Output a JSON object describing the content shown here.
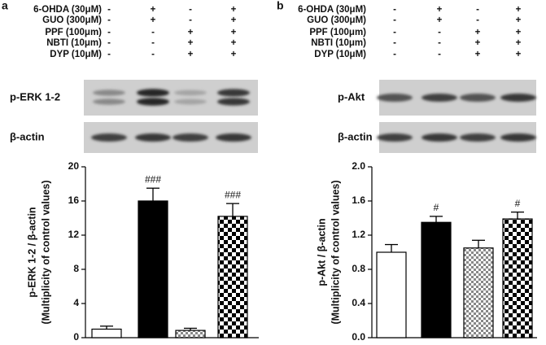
{
  "panels": [
    {
      "label": "a",
      "treatments": [
        {
          "name": "6-OHDA (30μM)",
          "signs": [
            "-",
            "+",
            "-",
            "+"
          ]
        },
        {
          "name": "GUO (300μM)",
          "signs": [
            "-",
            "+",
            "-",
            "+"
          ]
        },
        {
          "name": "PPF (100μm)",
          "signs": [
            "-",
            "-",
            "+",
            "+"
          ]
        },
        {
          "name": "NBTI (10μm)",
          "signs": [
            "-",
            "-",
            "+",
            "+"
          ]
        },
        {
          "name": "DYP (10μM)",
          "signs": [
            "-",
            "-",
            "+",
            "+"
          ]
        }
      ],
      "blots": [
        "p-ERK 1-2",
        "β-actin"
      ]
    },
    {
      "label": "b",
      "treatments": [
        {
          "name": "6-OHDA (30μM)",
          "signs": [
            "-",
            "+",
            "-",
            "+"
          ]
        },
        {
          "name": "GUO (300μM)",
          "signs": [
            "-",
            "+",
            "-",
            "+"
          ]
        },
        {
          "name": "PPF (100μm)",
          "signs": [
            "-",
            "-",
            "+",
            "+"
          ]
        },
        {
          "name": "NBTI (10μm)",
          "signs": [
            "-",
            "-",
            "+",
            "+"
          ]
        },
        {
          "name": "DYP (10μM)",
          "signs": [
            "-",
            "-",
            "+",
            "+"
          ]
        }
      ],
      "blots": [
        "p-Akt",
        "β-actin"
      ]
    }
  ],
  "chart_data": [
    {
      "type": "bar",
      "ylabel": [
        "p-ERK 1-2 / β-actin",
        "(Multiplicity of control values)"
      ],
      "values": [
        1.0,
        16.0,
        0.85,
        14.2
      ],
      "errors": [
        0.35,
        1.5,
        0.25,
        1.5
      ],
      "fills": [
        "white",
        "black",
        "checker-fine",
        "checker-coarse"
      ],
      "annotations": [
        {
          "index": 1,
          "text": "###"
        },
        {
          "index": 3,
          "text": "###"
        }
      ],
      "ylim": [
        0,
        20
      ],
      "yticks": [
        0,
        4,
        8,
        12,
        16,
        20
      ]
    },
    {
      "type": "bar",
      "ylabel": [
        "p-Akt / β-actin",
        "(Multiplicity of control values)"
      ],
      "values": [
        1.0,
        1.35,
        1.05,
        1.39
      ],
      "errors": [
        0.09,
        0.07,
        0.09,
        0.08
      ],
      "fills": [
        "white",
        "black",
        "checker-fine",
        "checker-coarse"
      ],
      "annotations": [
        {
          "index": 1,
          "text": "#"
        },
        {
          "index": 3,
          "text": "#"
        }
      ],
      "ylim": [
        0,
        2.0
      ],
      "yticks": [
        {
          "value": 0,
          "label": "0.0"
        },
        0.4,
        0.8,
        1.2,
        1.6,
        {
          "value": 2,
          "label": "2.0"
        }
      ]
    }
  ]
}
